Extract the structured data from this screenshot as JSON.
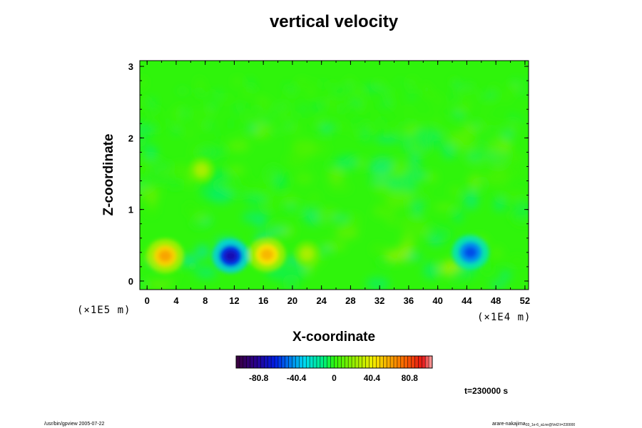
{
  "chart_data": {
    "type": "heatmap",
    "title": "vertical velocity",
    "xlabel": "X-coordinate",
    "ylabel": "Z-coordinate",
    "x_ticks": [
      "0",
      "4",
      "8",
      "12",
      "16",
      "20",
      "24",
      "28",
      "32",
      "36",
      "40",
      "44",
      "48",
      "52"
    ],
    "y_ticks": [
      "0",
      "1",
      "2",
      "3"
    ],
    "x_unit": "(×1E4 m)",
    "y_unit": "(×1E5 m)",
    "xlim": [
      -1,
      52.5
    ],
    "ylim": [
      -0.12,
      3.08
    ],
    "colorbar": {
      "ticks": [
        "-80.8",
        "-40.4",
        "0",
        "40.4",
        "80.8"
      ],
      "tick_values": [
        -80.8,
        -40.4,
        0,
        40.4,
        80.8
      ],
      "range": [
        -105,
        105
      ]
    },
    "features": [
      {
        "x": 2.5,
        "z": 0.35,
        "value": 60
      },
      {
        "x": 11.5,
        "z": 0.35,
        "value": -75
      },
      {
        "x": 16.5,
        "z": 0.37,
        "value": 55
      },
      {
        "x": 44.5,
        "z": 0.4,
        "value": -55
      },
      {
        "x": 7.5,
        "z": 1.55,
        "value": 25
      },
      {
        "x": 22.0,
        "z": 0.38,
        "value": 25
      }
    ],
    "time_label": "t=230000 s"
  },
  "footer": {
    "left": "/usr/bin/gpview 2005-07-22",
    "right_main": "arare-nakajima",
    "right_sub": "03_1e-6_aLne@Vel2:t=230000"
  }
}
